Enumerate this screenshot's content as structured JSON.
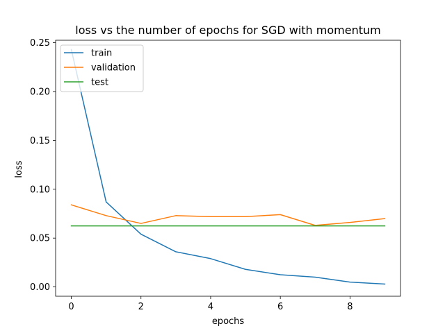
{
  "chart_data": {
    "type": "line",
    "title": "loss vs the number of epochs for SGD with momentum",
    "xlabel": "epochs",
    "ylabel": "loss",
    "xlim": [
      -0.45,
      9.45
    ],
    "ylim": [
      -0.0095,
      0.2525
    ],
    "x": [
      0,
      1,
      2,
      3,
      4,
      5,
      6,
      7,
      8,
      9
    ],
    "xticks": [
      0,
      2,
      4,
      6,
      8
    ],
    "xtick_labels": [
      "0",
      "2",
      "4",
      "6",
      "8"
    ],
    "yticks": [
      0.0,
      0.05,
      0.1,
      0.15,
      0.2,
      0.25
    ],
    "ytick_labels": [
      "0.00",
      "0.05",
      "0.10",
      "0.15",
      "0.20",
      "0.25"
    ],
    "grid": false,
    "legend_position": "top-left",
    "series": [
      {
        "name": "train",
        "color": "#1f77b4",
        "values": [
          0.243,
          0.087,
          0.054,
          0.036,
          0.029,
          0.018,
          0.0125,
          0.01,
          0.005,
          0.003
        ]
      },
      {
        "name": "validation",
        "color": "#ff7f0e",
        "values": [
          0.084,
          0.073,
          0.065,
          0.073,
          0.072,
          0.072,
          0.074,
          0.063,
          0.066,
          0.07
        ]
      },
      {
        "name": "test",
        "color": "#2ca02c",
        "values": [
          0.0625,
          0.0625,
          0.0625,
          0.0625,
          0.0625,
          0.0625,
          0.0625,
          0.0625,
          0.0625,
          0.0625
        ]
      }
    ]
  }
}
